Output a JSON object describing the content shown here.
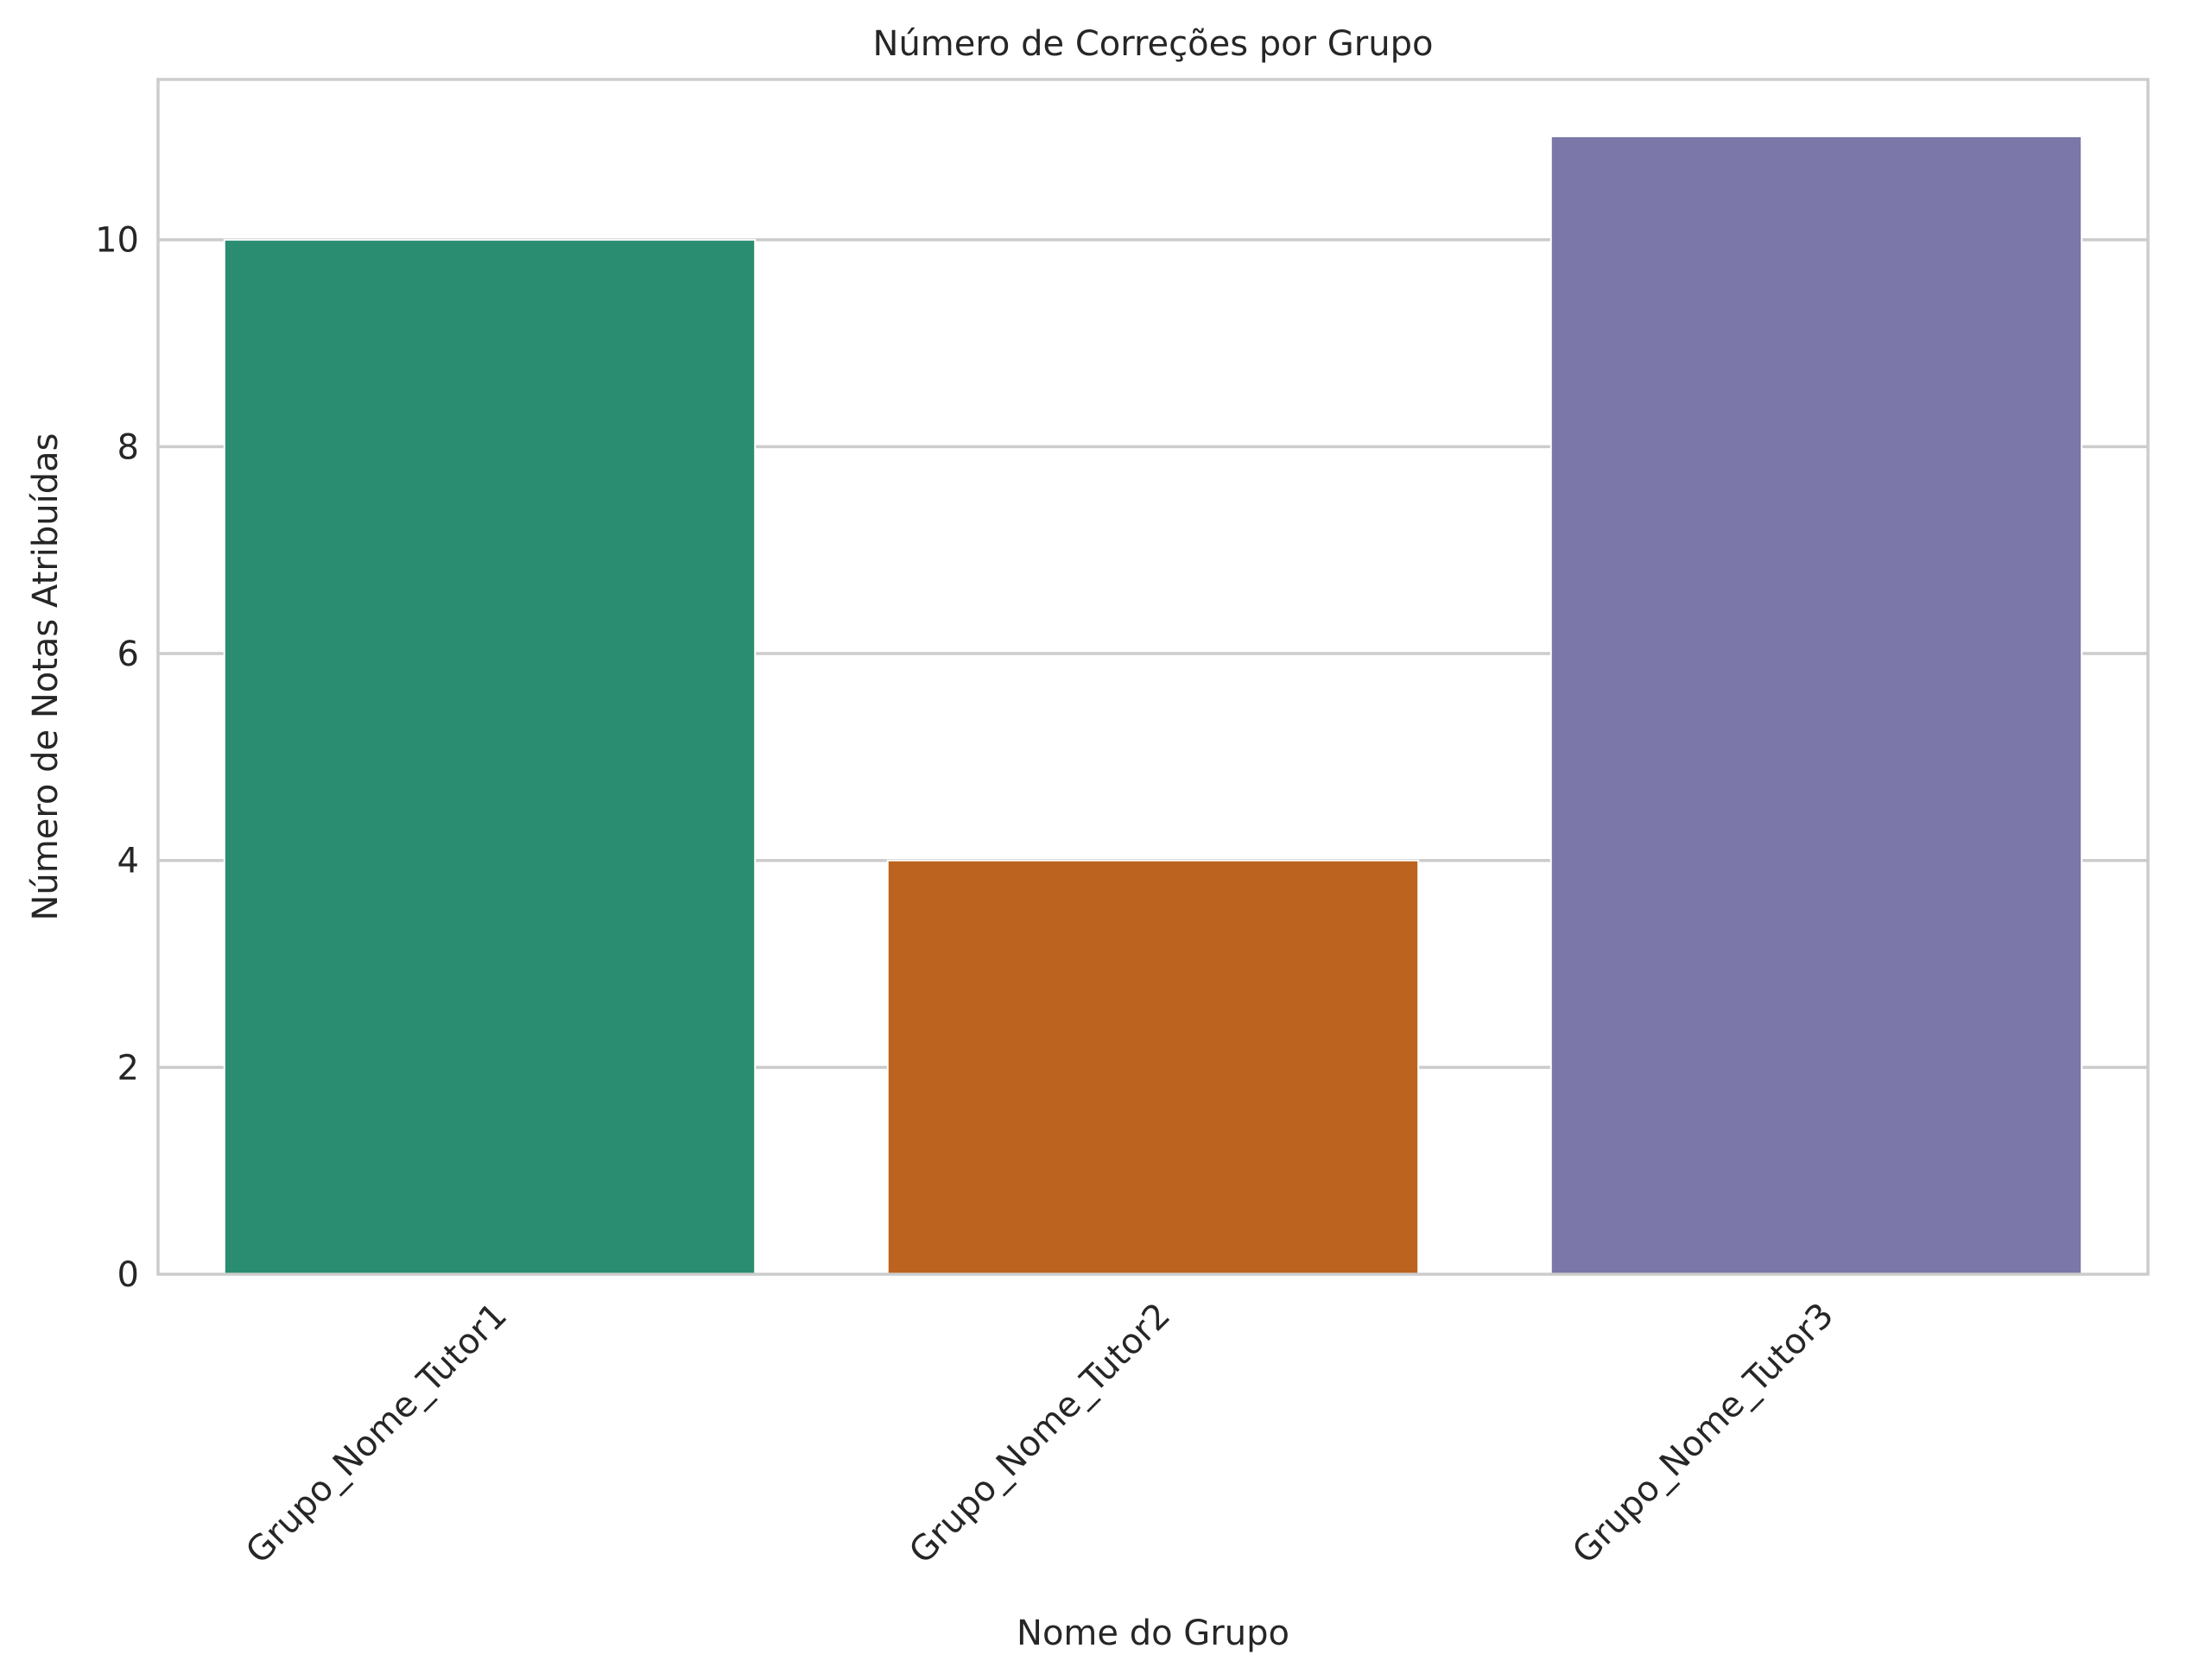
{
  "chart_data": {
    "type": "bar",
    "title": "Número de Correções por Grupo",
    "xlabel": "Nome do Grupo",
    "ylabel": "Número de Notas Atribuídas",
    "categories": [
      "Grupo_Nome_Tutor1",
      "Grupo_Nome_Tutor2",
      "Grupo_Nome_Tutor3"
    ],
    "values": [
      10,
      4,
      11
    ],
    "colors": [
      "#2a8d71",
      "#bd6320",
      "#7b77a8"
    ],
    "ylim": [
      0,
      11.55
    ],
    "yticks": [
      0,
      2,
      4,
      6,
      8,
      10
    ],
    "grid": true,
    "legend": "none"
  }
}
